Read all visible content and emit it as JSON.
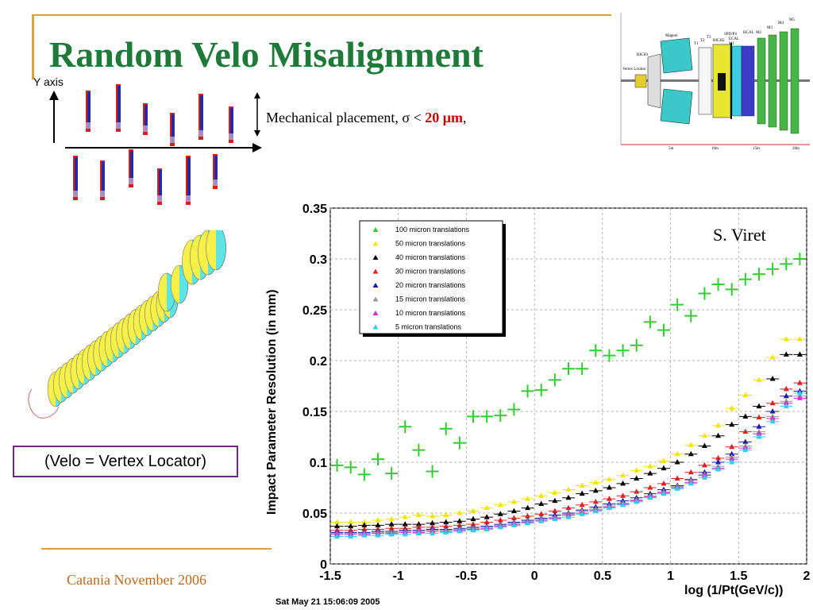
{
  "slide": {
    "title": "Random Velo Misalignment",
    "footer": "Catania November 2006",
    "velo_note": "(Velo = Vertex Locator)",
    "mech_prefix": "Mechanical placement, ",
    "mech_sigma": "σ < ",
    "mech_value": "20 μm",
    "mech_suffix": ",",
    "yaxis_label": "Y axis",
    "credit": "S. Viret",
    "timestamp": "Sat May 21 15:06:09 2005"
  },
  "detector": {
    "labels": [
      "Magnet",
      "RICH1",
      "T1",
      "T2",
      "T3",
      "RICH2",
      "SPD/PS",
      "ECAL",
      "HCAL",
      "M1",
      "M2",
      "M3",
      "M4",
      "M5",
      "Vertex Locator"
    ],
    "axis_ticks": [
      "5m",
      "10m",
      "15m",
      "20m"
    ],
    "colors": {
      "magnet": "#3cc8c8",
      "ecal": "#3c3cc8",
      "hcal": "#2ea838",
      "muon": "#46b446"
    }
  },
  "colors": {
    "title": "#1f7a3a",
    "accent_line": "#d9a43a",
    "footer": "#b86a1e",
    "velo_box_border": "#6b2a7a",
    "sensor_red": "#cc2222",
    "sensor_blue": "#2a2aa0"
  },
  "chart_data": {
    "type": "scatter",
    "xlabel": "log (1/Pt(GeV/c))",
    "ylabel": "Impact Parameter  Resolution (in mm)",
    "xlim": [
      -1.5,
      2.0
    ],
    "ylim": [
      0,
      0.35
    ],
    "x_ticks": [
      "-1.5",
      "-1",
      "-0.5",
      "0",
      "0.5",
      "1",
      "1.5",
      "2"
    ],
    "y_ticks": [
      "0",
      "0.05",
      "0.1",
      "0.15",
      "0.2",
      "0.25",
      "0.3",
      "0.35"
    ],
    "grid": true,
    "legend_position": "top-left",
    "x": [
      -1.45,
      -1.35,
      -1.25,
      -1.15,
      -1.05,
      -0.95,
      -0.85,
      -0.75,
      -0.65,
      -0.55,
      -0.45,
      -0.35,
      -0.25,
      -0.15,
      -0.05,
      0.05,
      0.15,
      0.25,
      0.35,
      0.45,
      0.55,
      0.65,
      0.75,
      0.85,
      0.95,
      1.05,
      1.15,
      1.25,
      1.35,
      1.45,
      1.55,
      1.65,
      1.75,
      1.85,
      1.95
    ],
    "series": [
      {
        "name": "100 micron translations",
        "color": "#33cc33",
        "style": "cross",
        "values": [
          0.097,
          0.095,
          0.088,
          0.103,
          0.089,
          0.135,
          0.112,
          0.091,
          0.133,
          0.119,
          0.145,
          0.145,
          0.146,
          0.152,
          0.17,
          0.171,
          0.181,
          0.192,
          0.192,
          0.21,
          0.205,
          0.21,
          0.215,
          0.238,
          0.23,
          0.255,
          0.244,
          0.266,
          0.275,
          0.27,
          0.28,
          0.285,
          0.29,
          0.295,
          0.3
        ]
      },
      {
        "name": "50 micron translations",
        "color": "#f2e600",
        "style": "triangle",
        "values": [
          0.041,
          0.041,
          0.041,
          0.043,
          0.044,
          0.046,
          0.048,
          0.047,
          0.048,
          0.05,
          0.052,
          0.055,
          0.058,
          0.061,
          0.064,
          0.067,
          0.07,
          0.073,
          0.077,
          0.08,
          0.083,
          0.087,
          0.092,
          0.096,
          0.101,
          0.108,
          0.117,
          0.126,
          0.136,
          0.153,
          0.166,
          0.181,
          0.203,
          0.221,
          0.221
        ]
      },
      {
        "name": "40 micron translations",
        "color": "#000000",
        "style": "triangle",
        "values": [
          0.037,
          0.037,
          0.038,
          0.038,
          0.039,
          0.039,
          0.039,
          0.04,
          0.041,
          0.042,
          0.044,
          0.046,
          0.049,
          0.052,
          0.055,
          0.059,
          0.062,
          0.065,
          0.069,
          0.072,
          0.075,
          0.079,
          0.084,
          0.089,
          0.094,
          0.1,
          0.108,
          0.116,
          0.126,
          0.137,
          0.145,
          0.155,
          0.182,
          0.206,
          0.206
        ]
      },
      {
        "name": "30 micron translations",
        "color": "#dd2222",
        "style": "triangle",
        "values": [
          0.033,
          0.033,
          0.034,
          0.034,
          0.035,
          0.035,
          0.036,
          0.036,
          0.037,
          0.038,
          0.039,
          0.041,
          0.043,
          0.045,
          0.047,
          0.049,
          0.052,
          0.055,
          0.058,
          0.061,
          0.064,
          0.067,
          0.071,
          0.075,
          0.079,
          0.084,
          0.09,
          0.097,
          0.104,
          0.115,
          0.13,
          0.144,
          0.158,
          0.172,
          0.178
        ]
      },
      {
        "name": "20 micron translations",
        "color": "#1a1aaa",
        "style": "triangle",
        "values": [
          0.031,
          0.031,
          0.031,
          0.032,
          0.032,
          0.033,
          0.033,
          0.034,
          0.034,
          0.035,
          0.036,
          0.037,
          0.039,
          0.041,
          0.043,
          0.045,
          0.048,
          0.05,
          0.053,
          0.056,
          0.059,
          0.062,
          0.065,
          0.069,
          0.073,
          0.077,
          0.083,
          0.09,
          0.1,
          0.108,
          0.12,
          0.135,
          0.15,
          0.165,
          0.17
        ]
      },
      {
        "name": "15 micron translations",
        "color": "#999999",
        "style": "triangle",
        "values": [
          0.03,
          0.03,
          0.03,
          0.031,
          0.031,
          0.032,
          0.032,
          0.033,
          0.033,
          0.034,
          0.035,
          0.036,
          0.038,
          0.04,
          0.042,
          0.044,
          0.046,
          0.049,
          0.052,
          0.054,
          0.057,
          0.06,
          0.063,
          0.067,
          0.071,
          0.076,
          0.082,
          0.088,
          0.096,
          0.105,
          0.116,
          0.13,
          0.145,
          0.16,
          0.165
        ]
      },
      {
        "name": "10 micron translations",
        "color": "#cc33cc",
        "style": "triangle",
        "values": [
          0.029,
          0.029,
          0.029,
          0.03,
          0.03,
          0.031,
          0.031,
          0.032,
          0.032,
          0.033,
          0.034,
          0.035,
          0.037,
          0.039,
          0.041,
          0.043,
          0.045,
          0.048,
          0.05,
          0.053,
          0.056,
          0.059,
          0.062,
          0.066,
          0.07,
          0.075,
          0.08,
          0.087,
          0.094,
          0.103,
          0.114,
          0.128,
          0.143,
          0.158,
          0.163
        ]
      },
      {
        "name": "5 micron translations",
        "color": "#33ccee",
        "style": "triangle",
        "values": [
          0.027,
          0.027,
          0.028,
          0.028,
          0.029,
          0.029,
          0.03,
          0.03,
          0.031,
          0.032,
          0.033,
          0.034,
          0.036,
          0.038,
          0.04,
          0.042,
          0.044,
          0.046,
          0.049,
          0.052,
          0.055,
          0.058,
          0.061,
          0.065,
          0.069,
          0.074,
          0.079,
          0.085,
          0.093,
          0.1,
          0.112,
          0.125,
          0.14,
          0.155,
          0.168
        ]
      }
    ]
  }
}
